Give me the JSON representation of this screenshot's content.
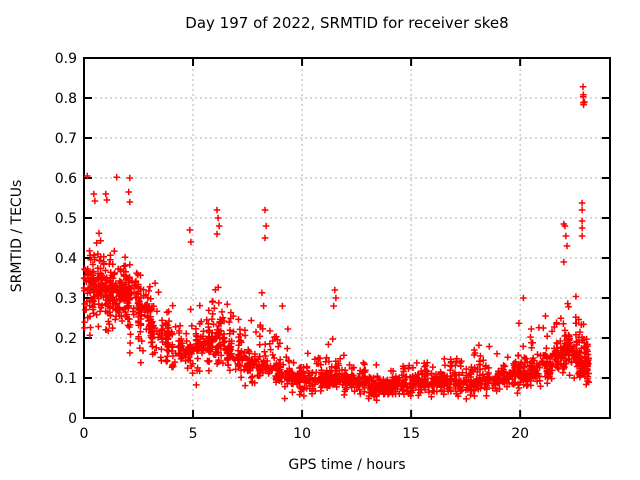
{
  "chart_data": {
    "type": "scatter",
    "title": "Day 197 of 2022, SRMTID for receiver ske8",
    "xlabel": "GPS time / hours",
    "ylabel": "SRMTID / TECUs",
    "xlim": [
      0,
      24.12
    ],
    "ylim": [
      0,
      0.9
    ],
    "x_ticks": [
      0,
      5,
      10,
      15,
      20
    ],
    "y_ticks": [
      0,
      0.1,
      0.2,
      0.3,
      0.4,
      0.5,
      0.6,
      0.7,
      0.8,
      0.9
    ],
    "grid": true,
    "legend": "none",
    "marker": "plus",
    "marker_color": "#ff0000",
    "grid_color": "#b0b0b0",
    "border_color": "#000000",
    "background": "#ffffff",
    "seed": 20220197,
    "distribution_bins": [
      [
        0.0,
        0.5,
        75,
        0.17,
        0.34,
        0.52
      ],
      [
        0.5,
        1.0,
        70,
        0.18,
        0.33,
        0.5
      ],
      [
        1.0,
        1.5,
        75,
        0.18,
        0.32,
        0.5
      ],
      [
        1.5,
        2.0,
        70,
        0.17,
        0.31,
        0.48
      ],
      [
        2.0,
        2.5,
        65,
        0.14,
        0.3,
        0.47
      ],
      [
        2.5,
        3.0,
        60,
        0.12,
        0.27,
        0.43
      ],
      [
        3.0,
        3.5,
        50,
        0.1,
        0.23,
        0.4
      ],
      [
        3.5,
        4.0,
        45,
        0.09,
        0.2,
        0.37
      ],
      [
        4.0,
        4.5,
        42,
        0.08,
        0.18,
        0.33
      ],
      [
        4.5,
        5.0,
        42,
        0.08,
        0.17,
        0.34
      ],
      [
        5.0,
        5.5,
        42,
        0.08,
        0.18,
        0.35
      ],
      [
        5.5,
        6.0,
        45,
        0.08,
        0.19,
        0.38
      ],
      [
        6.0,
        6.5,
        48,
        0.08,
        0.2,
        0.44
      ],
      [
        6.5,
        7.0,
        45,
        0.07,
        0.17,
        0.36
      ],
      [
        7.0,
        7.5,
        42,
        0.06,
        0.15,
        0.32
      ],
      [
        7.5,
        8.0,
        42,
        0.06,
        0.14,
        0.3
      ],
      [
        8.0,
        8.5,
        42,
        0.05,
        0.13,
        0.36
      ],
      [
        8.5,
        9.0,
        40,
        0.05,
        0.12,
        0.3
      ],
      [
        9.0,
        9.5,
        40,
        0.04,
        0.11,
        0.26
      ],
      [
        9.5,
        10.0,
        40,
        0.04,
        0.1,
        0.2
      ],
      [
        10.0,
        10.5,
        45,
        0.04,
        0.095,
        0.18
      ],
      [
        10.5,
        11.0,
        45,
        0.05,
        0.1,
        0.2
      ],
      [
        11.0,
        11.5,
        48,
        0.05,
        0.105,
        0.24
      ],
      [
        11.5,
        12.0,
        48,
        0.04,
        0.1,
        0.22
      ],
      [
        12.0,
        12.5,
        48,
        0.04,
        0.095,
        0.2
      ],
      [
        12.5,
        13.0,
        48,
        0.03,
        0.09,
        0.17
      ],
      [
        13.0,
        13.5,
        48,
        0.02,
        0.08,
        0.15
      ],
      [
        13.5,
        14.0,
        48,
        0.03,
        0.08,
        0.16
      ],
      [
        14.0,
        14.5,
        48,
        0.03,
        0.085,
        0.18
      ],
      [
        14.5,
        15.0,
        45,
        0.03,
        0.085,
        0.16
      ],
      [
        15.0,
        15.5,
        45,
        0.04,
        0.09,
        0.16
      ],
      [
        15.5,
        16.0,
        45,
        0.04,
        0.09,
        0.18
      ],
      [
        16.0,
        16.5,
        45,
        0.04,
        0.09,
        0.19
      ],
      [
        16.5,
        17.0,
        45,
        0.04,
        0.095,
        0.2
      ],
      [
        17.0,
        17.5,
        45,
        0.04,
        0.09,
        0.21
      ],
      [
        17.5,
        18.0,
        45,
        0.04,
        0.09,
        0.19
      ],
      [
        18.0,
        18.5,
        45,
        0.04,
        0.095,
        0.2
      ],
      [
        18.5,
        19.0,
        45,
        0.05,
        0.1,
        0.21
      ],
      [
        19.0,
        19.5,
        45,
        0.05,
        0.1,
        0.23
      ],
      [
        19.5,
        20.0,
        45,
        0.05,
        0.11,
        0.25
      ],
      [
        20.0,
        20.5,
        48,
        0.05,
        0.11,
        0.27
      ],
      [
        20.5,
        21.0,
        48,
        0.06,
        0.12,
        0.27
      ],
      [
        21.0,
        21.5,
        50,
        0.06,
        0.13,
        0.29
      ],
      [
        21.5,
        22.0,
        50,
        0.07,
        0.15,
        0.31
      ],
      [
        22.0,
        22.5,
        60,
        0.08,
        0.17,
        0.4
      ],
      [
        22.5,
        23.0,
        70,
        0.05,
        0.15,
        0.42
      ],
      [
        23.0,
        23.15,
        40,
        0.07,
        0.13,
        0.26
      ]
    ],
    "outlier_points": [
      [
        0.15,
        0.605
      ],
      [
        0.45,
        0.56
      ],
      [
        0.5,
        0.5425
      ],
      [
        1.0,
        0.56
      ],
      [
        1.05,
        0.545
      ],
      [
        1.5,
        0.602
      ],
      [
        2.1,
        0.6
      ],
      [
        2.05,
        0.565
      ],
      [
        2.1,
        0.54
      ],
      [
        4.85,
        0.47
      ],
      [
        4.9,
        0.44
      ],
      [
        6.1,
        0.52
      ],
      [
        6.15,
        0.5
      ],
      [
        6.2,
        0.48
      ],
      [
        6.1,
        0.46
      ],
      [
        8.3,
        0.52
      ],
      [
        8.35,
        0.48
      ],
      [
        8.3,
        0.45
      ],
      [
        9.1,
        0.28
      ],
      [
        11.5,
        0.32
      ],
      [
        11.55,
        0.3
      ],
      [
        11.45,
        0.28
      ],
      [
        20.15,
        0.3
      ],
      [
        22.0,
        0.485
      ],
      [
        22.05,
        0.48
      ],
      [
        22.1,
        0.455
      ],
      [
        22.15,
        0.43
      ],
      [
        22.0,
        0.39
      ],
      [
        22.84,
        0.5375
      ],
      [
        22.84,
        0.52
      ],
      [
        22.84,
        0.4925
      ],
      [
        22.84,
        0.475
      ],
      [
        22.84,
        0.455
      ],
      [
        22.88,
        0.828
      ],
      [
        22.9,
        0.808
      ],
      [
        22.89,
        0.803
      ],
      [
        22.9,
        0.788
      ],
      [
        22.91,
        0.783
      ],
      [
        22.95,
        0.79
      ]
    ]
  }
}
